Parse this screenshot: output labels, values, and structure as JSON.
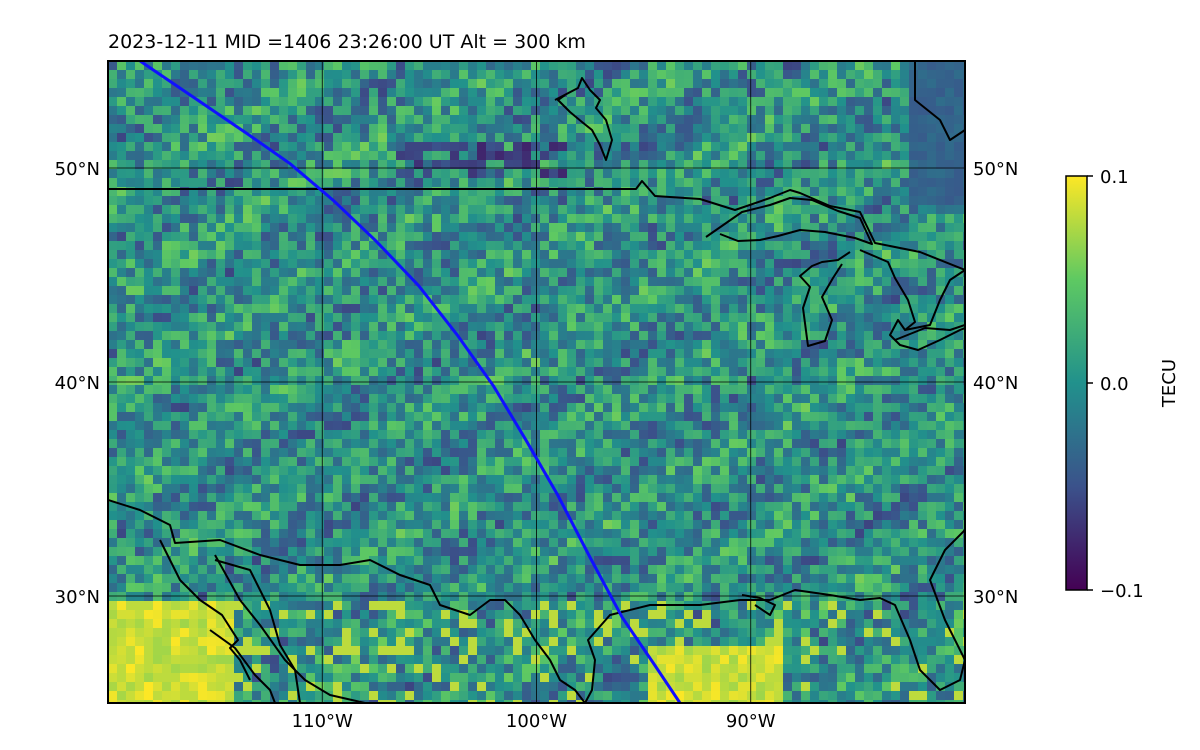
{
  "title": "2023-12-11  MID =1406    23:26:00  UT  Alt = 300 km",
  "map": {
    "lon_range": [
      -120,
      -80
    ],
    "lat_range": [
      25,
      55
    ],
    "lon_ticks": [
      {
        "value": -110,
        "label": "110°W"
      },
      {
        "value": -100,
        "label": "100°W"
      },
      {
        "value": -90,
        "label": "90°W"
      }
    ],
    "lat_ticks": [
      {
        "value": 50,
        "label": "50°N"
      },
      {
        "value": 40,
        "label": "40°N"
      },
      {
        "value": 30,
        "label": "30°N"
      }
    ],
    "gridlines": true,
    "track_color": "#1010ff",
    "track": [
      [
        -118.5,
        55
      ],
      [
        -116,
        53.3
      ],
      [
        -113.5,
        51.6
      ],
      [
        -111.5,
        50.2
      ],
      [
        -109.5,
        48.5
      ],
      [
        -107.5,
        46.6
      ],
      [
        -105.5,
        44.5
      ],
      [
        -103.7,
        42.2
      ],
      [
        -102,
        39.8
      ],
      [
        -100.5,
        37.3
      ],
      [
        -99,
        34.7
      ],
      [
        -97.5,
        31.8
      ],
      [
        -96,
        29
      ],
      [
        -94.5,
        26.8
      ],
      [
        -93.3,
        25
      ]
    ]
  },
  "colorbar": {
    "label": "TECU",
    "min": -0.1,
    "max": 0.1,
    "ticks": [
      {
        "value": 0.1,
        "label": "0.1"
      },
      {
        "value": 0.0,
        "label": "0.0"
      },
      {
        "value": -0.1,
        "label": "−0.1"
      }
    ],
    "colormap": "viridis",
    "colors": [
      "#440154",
      "#3b528b",
      "#21918c",
      "#5ec962",
      "#fde725"
    ]
  }
}
